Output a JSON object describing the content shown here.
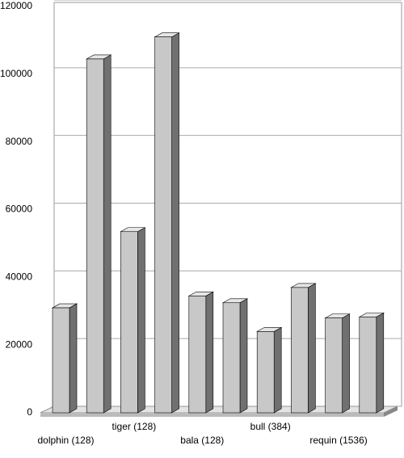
{
  "chart_data": {
    "type": "bar3d",
    "categories": [
      "dolphin (128)",
      null,
      "tiger (128)",
      null,
      "bala (128)",
      null,
      "bull (384)",
      null,
      "requin (1536)",
      null
    ],
    "values": [
      31000,
      104500,
      53500,
      111000,
      34500,
      32500,
      24000,
      37000,
      28000,
      28300
    ],
    "color": "#c8c8c8",
    "ylim": [
      0,
      120000
    ],
    "yticks": [
      0,
      20000,
      40000,
      60000,
      80000,
      100000,
      120000
    ],
    "grid": true
  }
}
